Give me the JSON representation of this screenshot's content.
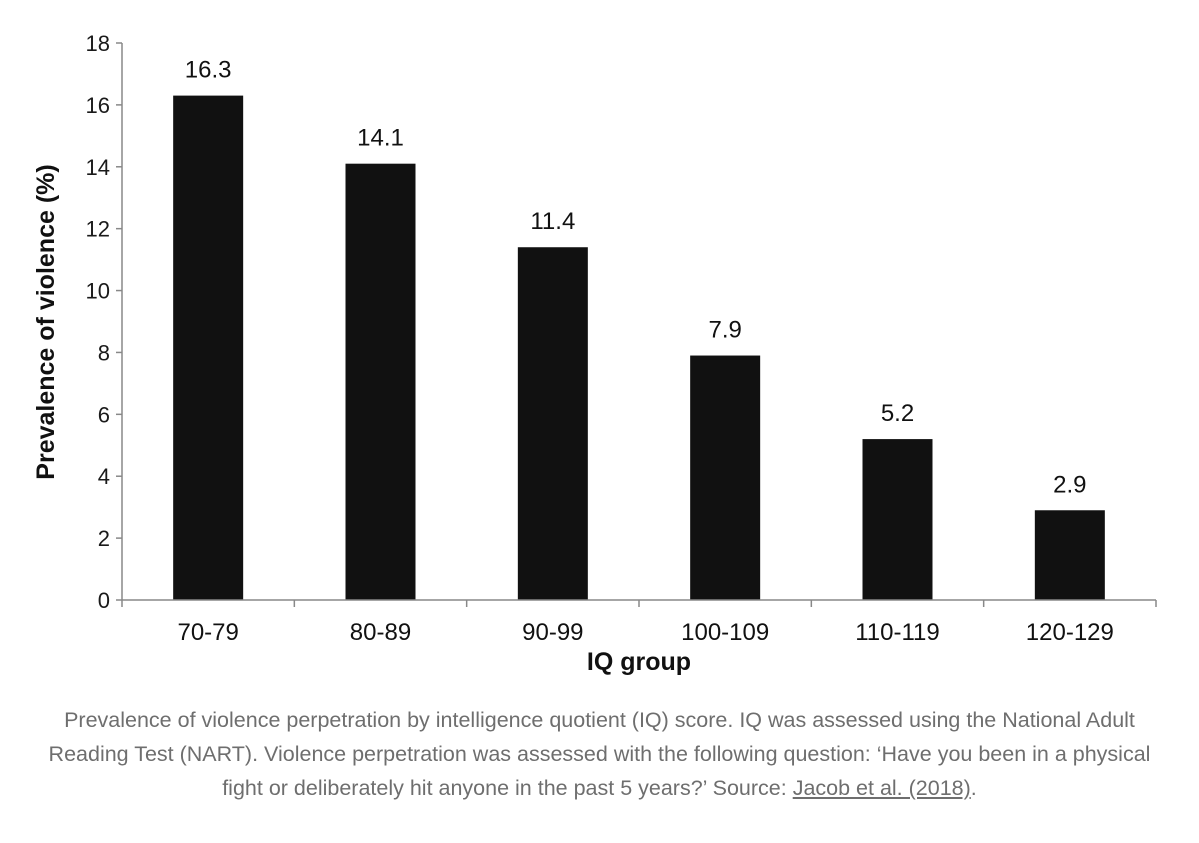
{
  "chart_data": {
    "type": "bar",
    "categories": [
      "70-79",
      "80-89",
      "90-99",
      "100-109",
      "110-119",
      "120-129"
    ],
    "values": [
      16.3,
      14.1,
      11.4,
      7.9,
      5.2,
      2.9
    ],
    "value_labels": [
      "16.3",
      "14.1",
      "11.4",
      "7.9",
      "5.2",
      "2.9"
    ],
    "title": "",
    "xlabel": "IQ group",
    "ylabel": "Prevalence of violence (%)",
    "ylim": [
      0,
      18
    ],
    "yticks": [
      0,
      2,
      4,
      6,
      8,
      10,
      12,
      14,
      16,
      18
    ],
    "grid": false,
    "legend": "none",
    "bar_color": "#111111"
  },
  "caption": {
    "text": "Prevalence of violence perpetration by intelligence quotient (IQ) score. IQ was assessed using the National Adult Reading Test (NART). Violence perpetration was assessed with the following question: ‘Have you been in a physical fight or deliberately hit anyone in the past 5 years?’ Source: ",
    "link_text": "Jacob et al. (2018)",
    "end": "."
  }
}
